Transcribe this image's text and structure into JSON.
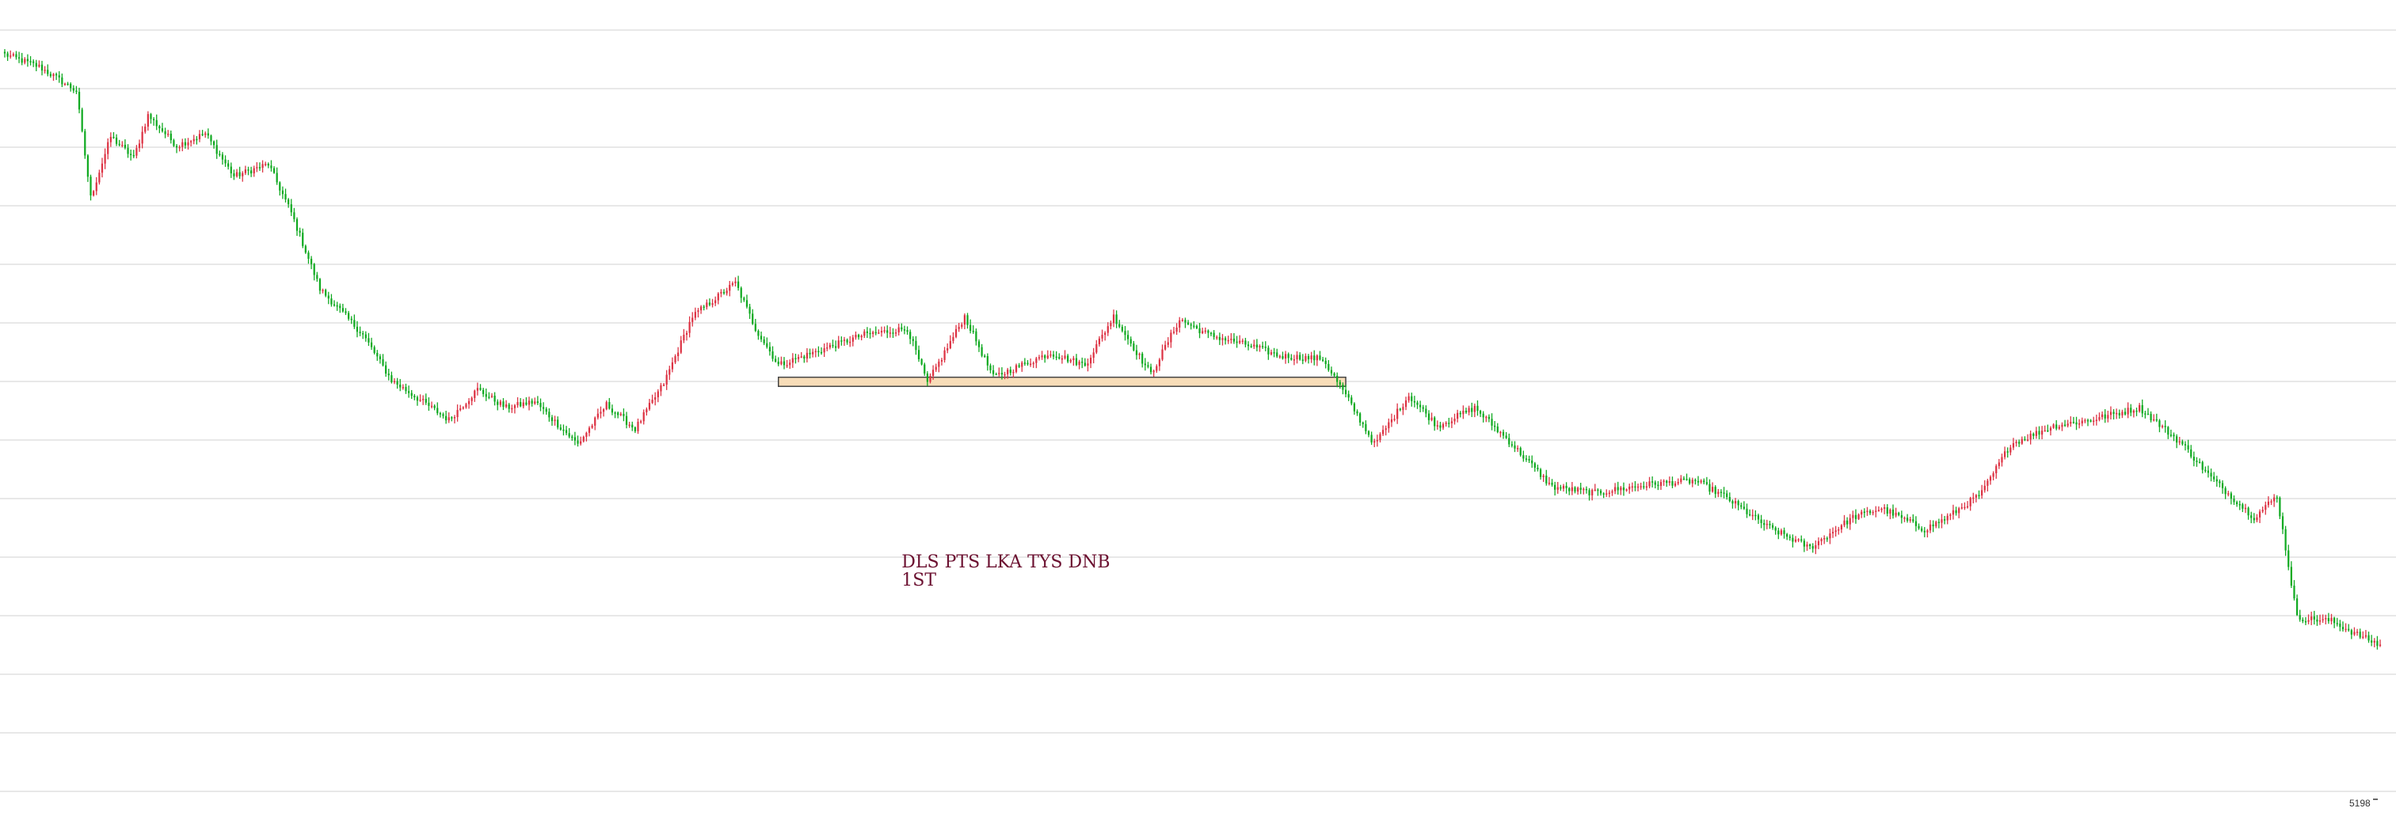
{
  "chart_data": {
    "type": "candlestick",
    "title": "",
    "xlabel": "",
    "ylabel": "",
    "ylim": [
      5150,
      5400
    ],
    "grid": true,
    "legend": "none",
    "last_price": "5198",
    "annotation": {
      "lines": [
        "DLS PTS LKA TYS DNB",
        "1ST"
      ],
      "color": "#6b1030"
    },
    "range_zone": {
      "start_bar": 270,
      "end_bar": 468,
      "low": 5283,
      "high": 5286,
      "color": "#f8ddb8"
    },
    "colors": {
      "up": "#dd3344",
      "down": "#11aa22",
      "grid": "#e0e0e0",
      "background": "#ffffff"
    },
    "n_bars": 830,
    "key_closes": [
      [
        0,
        5392
      ],
      [
        12,
        5388
      ],
      [
        25,
        5380
      ],
      [
        30,
        5345
      ],
      [
        37,
        5365
      ],
      [
        45,
        5358
      ],
      [
        50,
        5372
      ],
      [
        60,
        5362
      ],
      [
        70,
        5366
      ],
      [
        80,
        5352
      ],
      [
        92,
        5356
      ],
      [
        100,
        5340
      ],
      [
        110,
        5315
      ],
      [
        125,
        5300
      ],
      [
        135,
        5285
      ],
      [
        155,
        5272
      ],
      [
        165,
        5282
      ],
      [
        175,
        5276
      ],
      [
        185,
        5278
      ],
      [
        200,
        5264
      ],
      [
        210,
        5277
      ],
      [
        220,
        5269
      ],
      [
        230,
        5284
      ],
      [
        240,
        5306
      ],
      [
        255,
        5317
      ],
      [
        262,
        5302
      ],
      [
        270,
        5290
      ],
      [
        285,
        5295
      ],
      [
        300,
        5300
      ],
      [
        315,
        5302
      ],
      [
        322,
        5284
      ],
      [
        335,
        5306
      ],
      [
        345,
        5286
      ],
      [
        365,
        5294
      ],
      [
        377,
        5290
      ],
      [
        387,
        5306
      ],
      [
        400,
        5287
      ],
      [
        410,
        5305
      ],
      [
        420,
        5300
      ],
      [
        436,
        5296
      ],
      [
        445,
        5293
      ],
      [
        460,
        5292
      ],
      [
        468,
        5280
      ],
      [
        478,
        5264
      ],
      [
        490,
        5280
      ],
      [
        500,
        5270
      ],
      [
        513,
        5276
      ],
      [
        525,
        5265
      ],
      [
        540,
        5250
      ],
      [
        555,
        5248
      ],
      [
        575,
        5251
      ],
      [
        590,
        5252
      ],
      [
        600,
        5247
      ],
      [
        615,
        5237
      ],
      [
        630,
        5230
      ],
      [
        645,
        5240
      ],
      [
        655,
        5243
      ],
      [
        670,
        5236
      ],
      [
        678,
        5240
      ],
      [
        690,
        5248
      ],
      [
        700,
        5264
      ],
      [
        715,
        5270
      ],
      [
        728,
        5272
      ],
      [
        745,
        5276
      ],
      [
        760,
        5264
      ],
      [
        770,
        5253
      ],
      [
        785,
        5240
      ],
      [
        793,
        5247
      ],
      [
        800,
        5207
      ],
      [
        812,
        5206
      ],
      [
        820,
        5202
      ],
      [
        829,
        5198
      ]
    ]
  }
}
